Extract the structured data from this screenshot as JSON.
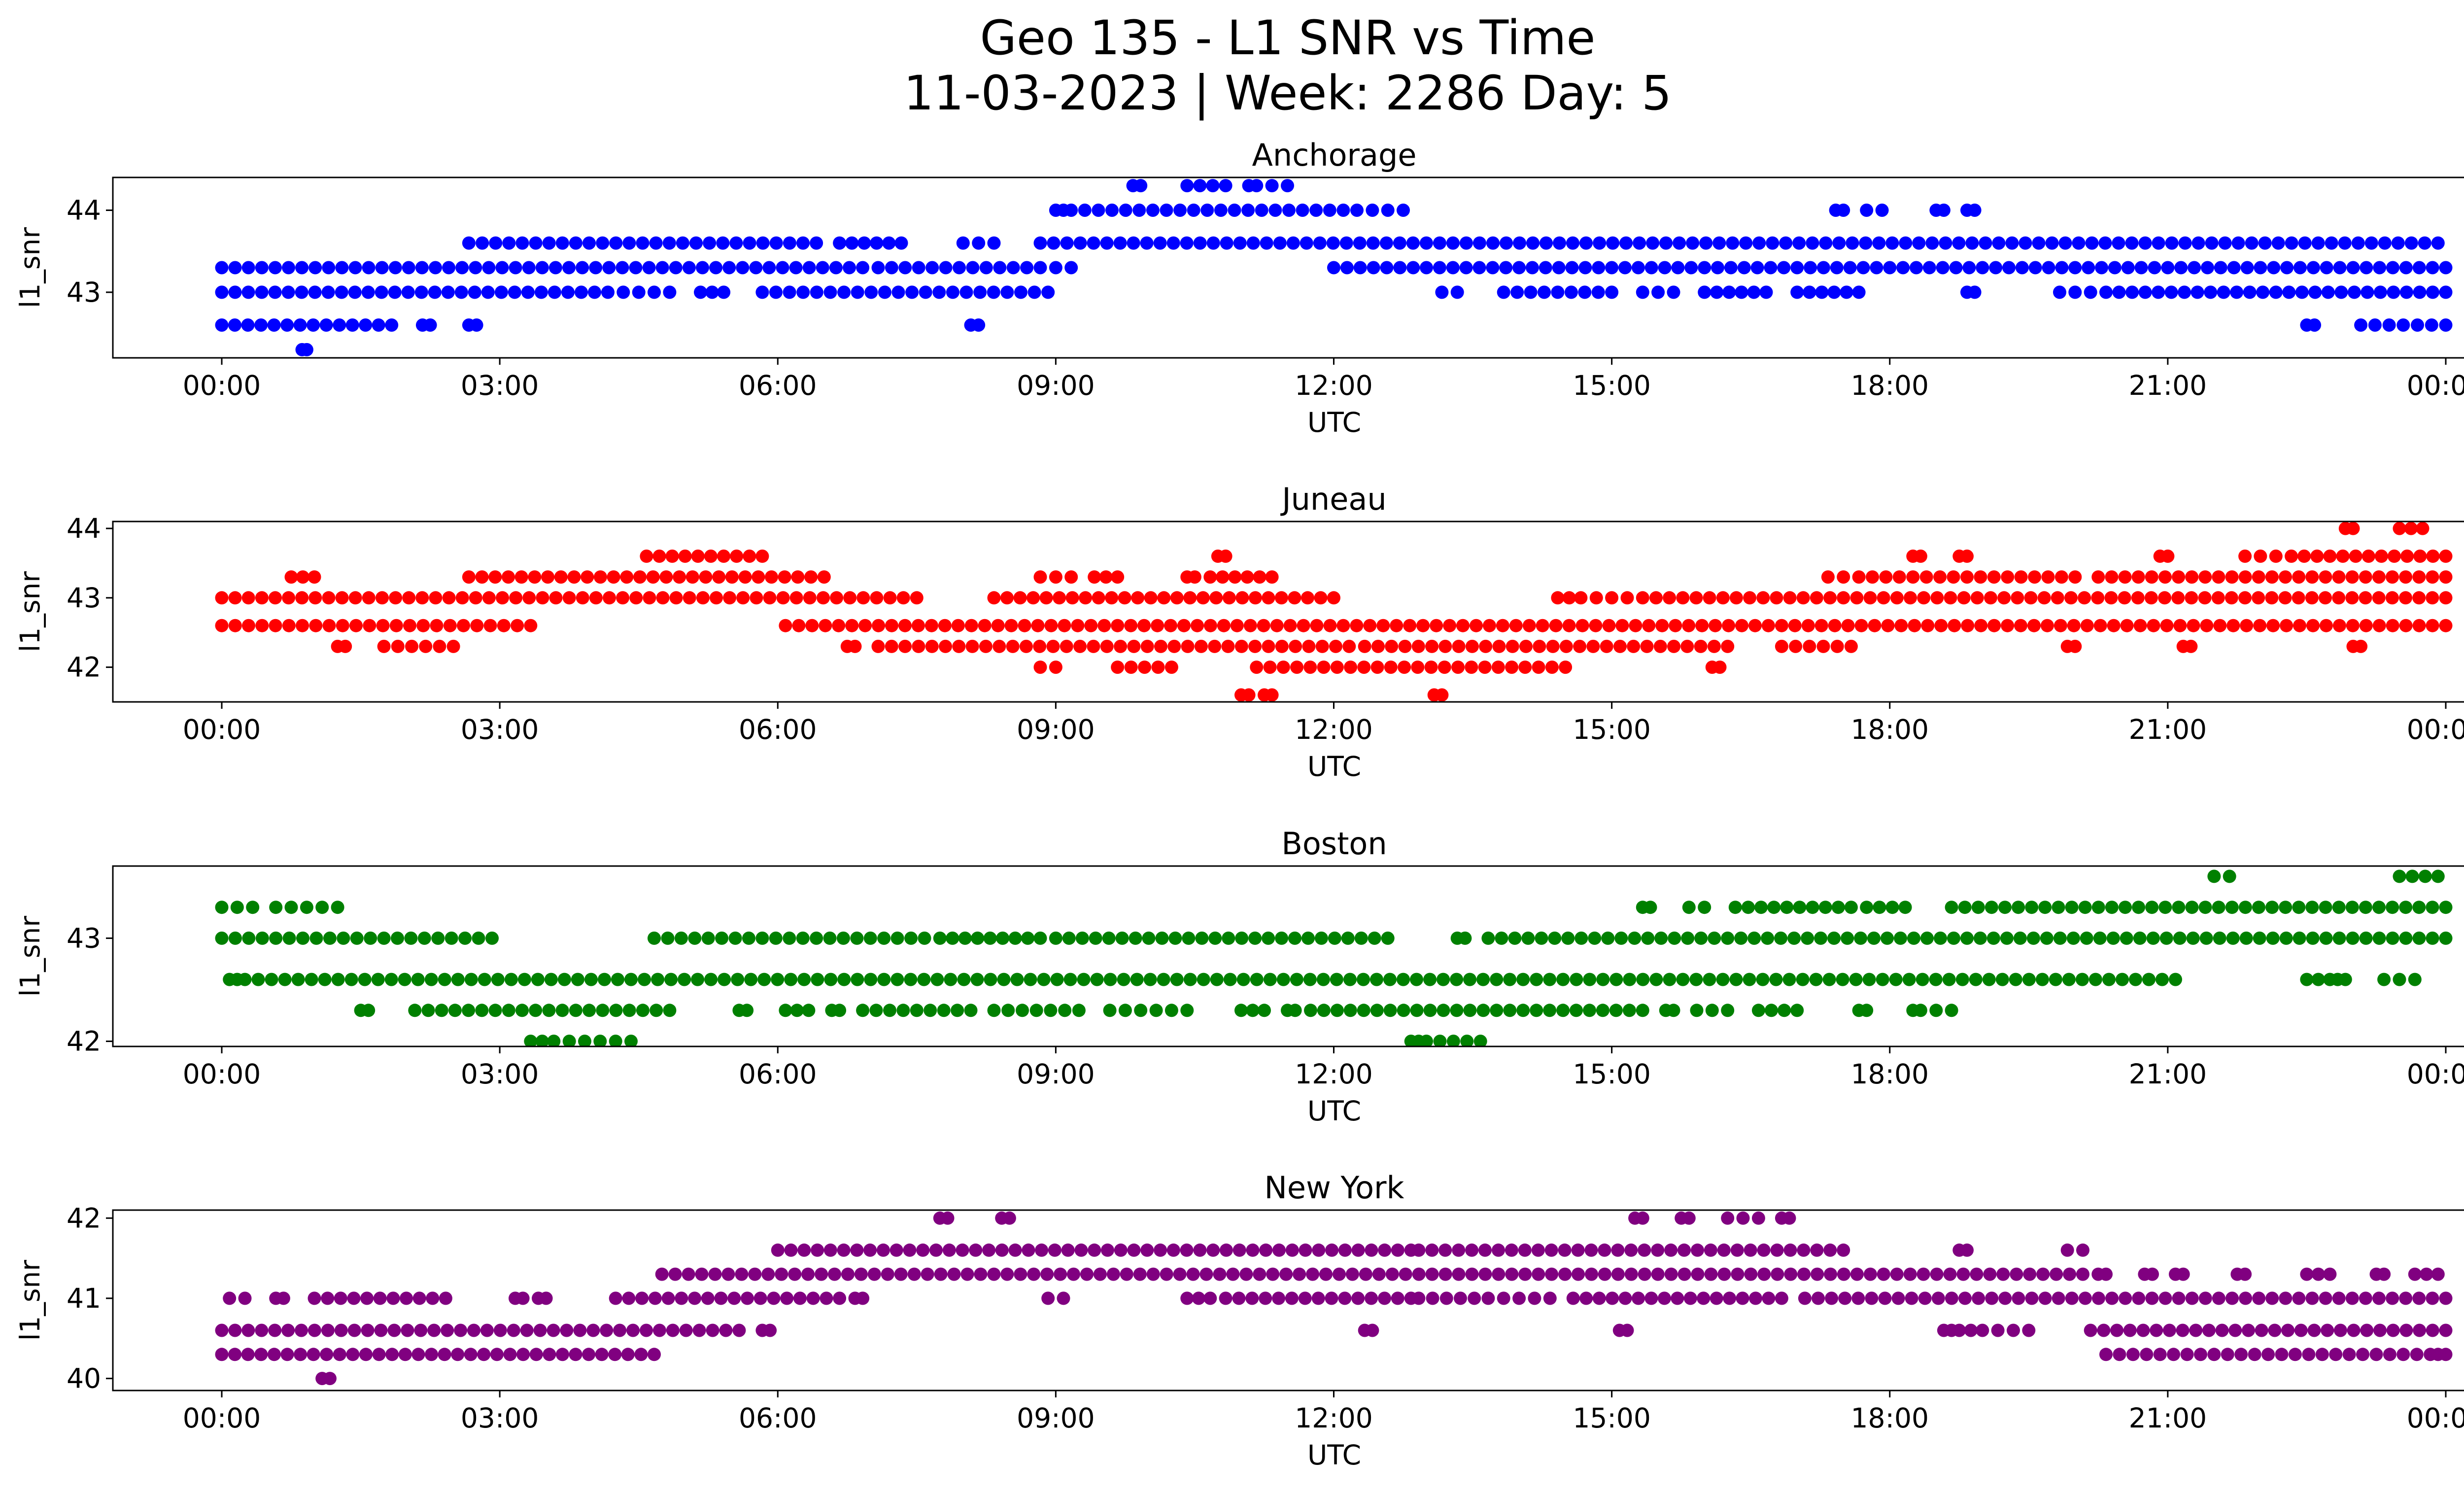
{
  "figure": {
    "title_line1": "Geo 135 - L1 SNR vs Time",
    "title_line2": "11-03-2023 | Week: 2286 Day: 5"
  },
  "chart_data": [
    {
      "type": "scatter",
      "title": "Anchorage",
      "xlabel": "UTC",
      "ylabel": "l1_snr",
      "color": "#0000ff",
      "xlim": [
        "2023-11-03 00:00",
        "2023-11-04 00:00"
      ],
      "ylim": [
        42.2,
        44.4
      ],
      "x_ticks": [
        "00:00",
        "03:00",
        "06:00",
        "09:00",
        "12:00",
        "15:00",
        "18:00",
        "21:00",
        "00:00"
      ],
      "y_ticks": [
        43,
        44
      ],
      "y_tick_labels": [
        "43",
        "44"
      ],
      "series": [
        {
          "y": 43.3,
          "segments": [
            [
              "00:00",
              "06:55"
            ],
            [
              "07:05",
              "08:50"
            ],
            [
              "09:00",
              "09:10"
            ],
            [
              "12:00",
              "24:00"
            ]
          ]
        },
        {
          "y": 43.0,
          "segments": [
            [
              "00:00",
              "04:10"
            ],
            [
              "04:20",
              "04:50"
            ],
            [
              "05:10",
              "05:25"
            ],
            [
              "05:50",
              "08:55"
            ],
            [
              "13:10",
              "13:20"
            ],
            [
              "13:50",
              "15:00"
            ],
            [
              "15:20",
              "15:40"
            ],
            [
              "16:00",
              "16:40"
            ],
            [
              "17:00",
              "17:40"
            ],
            [
              "18:50",
              "18:55"
            ],
            [
              "19:50",
              "20:10"
            ],
            [
              "20:20",
              "24:00"
            ]
          ]
        },
        {
          "y": 42.6,
          "segments": [
            [
              "00:00",
              "01:50"
            ],
            [
              "02:10",
              "02:15"
            ],
            [
              "02:40",
              "02:45"
            ],
            [
              "08:05",
              "08:10"
            ],
            [
              "22:30",
              "22:35"
            ],
            [
              "23:05",
              "24:00"
            ]
          ]
        },
        {
          "y": 42.3,
          "segments": [
            [
              "00:52",
              "00:55"
            ]
          ]
        },
        {
          "y": 43.6,
          "segments": [
            [
              "02:40",
              "06:25"
            ],
            [
              "06:40",
              "07:20"
            ],
            [
              "08:00",
              "08:20"
            ],
            [
              "08:50",
              "23:55"
            ]
          ]
        },
        {
          "y": 44.0,
          "segments": [
            [
              "09:00",
              "09:05"
            ],
            [
              "09:10",
              "12:15"
            ],
            [
              "12:25",
              "12:45"
            ],
            [
              "17:25",
              "17:30"
            ],
            [
              "17:45",
              "17:55"
            ],
            [
              "18:30",
              "18:35"
            ],
            [
              "18:50",
              "18:55"
            ]
          ]
        },
        {
          "y": 44.3,
          "segments": [
            [
              "09:50",
              "09:55"
            ],
            [
              "10:25",
              "10:50"
            ],
            [
              "11:05",
              "11:10"
            ],
            [
              "11:20",
              "11:30"
            ]
          ]
        }
      ]
    },
    {
      "type": "scatter",
      "title": "Juneau",
      "xlabel": "UTC",
      "ylabel": "l1_snr",
      "color": "#ff0000",
      "xlim": [
        "2023-11-03 00:00",
        "2023-11-04 00:00"
      ],
      "ylim": [
        41.5,
        44.1
      ],
      "x_ticks": [
        "00:00",
        "03:00",
        "06:00",
        "09:00",
        "12:00",
        "15:00",
        "18:00",
        "21:00",
        "00:00"
      ],
      "y_ticks": [
        42,
        43,
        44
      ],
      "y_tick_labels": [
        "42",
        "43",
        "44"
      ],
      "series": [
        {
          "y": 43.0,
          "segments": [
            [
              "00:00",
              "07:30"
            ],
            [
              "08:20",
              "12:00"
            ],
            [
              "14:25",
              "14:40"
            ],
            [
              "14:50",
              "15:10"
            ],
            [
              "15:20",
              "24:00"
            ]
          ]
        },
        {
          "y": 42.6,
          "segments": [
            [
              "00:00",
              "03:20"
            ],
            [
              "06:05",
              "24:00"
            ]
          ]
        },
        {
          "y": 43.3,
          "segments": [
            [
              "00:45",
              "01:00"
            ],
            [
              "02:40",
              "06:30"
            ],
            [
              "08:50",
              "09:10"
            ],
            [
              "09:25",
              "09:40"
            ],
            [
              "10:25",
              "10:30"
            ],
            [
              "10:40",
              "11:20"
            ],
            [
              "17:20",
              "17:30"
            ],
            [
              "17:40",
              "20:00"
            ],
            [
              "20:15",
              "24:00"
            ]
          ]
        },
        {
          "y": 42.3,
          "segments": [
            [
              "01:15",
              "01:20"
            ],
            [
              "01:45",
              "02:30"
            ],
            [
              "06:45",
              "06:50"
            ],
            [
              "07:05",
              "12:10"
            ],
            [
              "12:20",
              "16:15"
            ],
            [
              "16:50",
              "17:35"
            ],
            [
              "19:55",
              "20:00"
            ],
            [
              "21:10",
              "21:15"
            ],
            [
              "23:00",
              "23:05"
            ]
          ]
        },
        {
          "y": 43.6,
          "segments": [
            [
              "04:35",
              "05:50"
            ],
            [
              "10:45",
              "10:50"
            ],
            [
              "18:15",
              "18:20"
            ],
            [
              "18:45",
              "18:50"
            ],
            [
              "20:55",
              "21:00"
            ],
            [
              "21:50",
              "22:10"
            ],
            [
              "22:20",
              "24:00"
            ]
          ]
        },
        {
          "y": 42.0,
          "segments": [
            [
              "08:50",
              "09:00"
            ],
            [
              "09:40",
              "10:15"
            ],
            [
              "11:10",
              "14:30"
            ],
            [
              "16:05",
              "16:10"
            ]
          ]
        },
        {
          "y": 41.6,
          "segments": [
            [
              "11:00",
              "11:05"
            ],
            [
              "11:15",
              "11:20"
            ],
            [
              "13:05",
              "13:10"
            ]
          ]
        },
        {
          "y": 44.0,
          "segments": [
            [
              "22:55",
              "23:00"
            ],
            [
              "23:30",
              "23:45"
            ]
          ]
        }
      ]
    },
    {
      "type": "scatter",
      "title": "Boston",
      "xlabel": "UTC",
      "ylabel": "l1_snr",
      "color": "#008000",
      "xlim": [
        "2023-11-03 00:00",
        "2023-11-04 00:00"
      ],
      "ylim": [
        41.95,
        43.7
      ],
      "x_ticks": [
        "00:00",
        "03:00",
        "06:00",
        "09:00",
        "12:00",
        "15:00",
        "18:00",
        "21:00",
        "00:00"
      ],
      "y_ticks": [
        42,
        43
      ],
      "y_tick_labels": [
        "42",
        "43"
      ],
      "series": [
        {
          "y": 43.3,
          "segments": [
            [
              "00:00",
              "00:20"
            ],
            [
              "00:35",
              "00:45"
            ],
            [
              "00:55",
              "01:15"
            ],
            [
              "15:20",
              "15:25"
            ],
            [
              "15:50",
              "16:00"
            ],
            [
              "16:20",
              "17:35"
            ],
            [
              "17:45",
              "18:10"
            ],
            [
              "18:40",
              "24:00"
            ]
          ]
        },
        {
          "y": 43.0,
          "segments": [
            [
              "00:00",
              "02:55"
            ],
            [
              "04:40",
              "07:35"
            ],
            [
              "07:45",
              "08:50"
            ],
            [
              "09:00",
              "12:35"
            ],
            [
              "13:20",
              "13:25"
            ],
            [
              "13:40",
              "24:00"
            ]
          ]
        },
        {
          "y": 42.6,
          "segments": [
            [
              "00:05",
              "00:10"
            ],
            [
              "00:15",
              "21:05"
            ],
            [
              "22:30",
              "22:45"
            ],
            [
              "22:50",
              "22:55"
            ],
            [
              "23:20",
              "23:40"
            ]
          ]
        },
        {
          "y": 42.3,
          "segments": [
            [
              "01:30",
              "01:35"
            ],
            [
              "02:05",
              "04:50"
            ],
            [
              "05:35",
              "05:40"
            ],
            [
              "06:05",
              "06:20"
            ],
            [
              "06:35",
              "06:40"
            ],
            [
              "06:55",
              "08:05"
            ],
            [
              "08:20",
              "09:15"
            ],
            [
              "09:35",
              "09:55"
            ],
            [
              "10:05",
              "10:25"
            ],
            [
              "11:00",
              "11:15"
            ],
            [
              "11:30",
              "11:35"
            ],
            [
              "11:45",
              "15:20"
            ],
            [
              "15:35",
              "15:40"
            ],
            [
              "15:55",
              "16:15"
            ],
            [
              "16:35",
              "17:00"
            ],
            [
              "17:40",
              "17:45"
            ],
            [
              "18:15",
              "18:20"
            ],
            [
              "18:30",
              "18:40"
            ]
          ]
        },
        {
          "y": 42.0,
          "segments": [
            [
              "03:20",
              "03:35"
            ],
            [
              "03:45",
              "04:05"
            ],
            [
              "04:15",
              "04:25"
            ],
            [
              "12:50",
              "12:55"
            ],
            [
              "13:00",
              "13:35"
            ]
          ]
        },
        {
          "y": 43.6,
          "segments": [
            [
              "21:30",
              "21:40"
            ],
            [
              "23:30",
              "23:55"
            ]
          ]
        }
      ]
    },
    {
      "type": "scatter",
      "title": "New York",
      "xlabel": "UTC",
      "ylabel": "l1_snr",
      "color": "#800080",
      "xlim": [
        "2023-11-03 00:00",
        "2023-11-04 00:00"
      ],
      "ylim": [
        39.85,
        42.1
      ],
      "x_ticks": [
        "00:00",
        "03:00",
        "06:00",
        "09:00",
        "12:00",
        "15:00",
        "18:00",
        "21:00",
        "00:00"
      ],
      "y_ticks": [
        40,
        41,
        42
      ],
      "y_tick_labels": [
        "40",
        "41",
        "42"
      ],
      "series": [
        {
          "y": 40.3,
          "segments": [
            [
              "00:00",
              "04:40"
            ],
            [
              "20:20",
              "23:50"
            ],
            [
              "23:55",
              "24:00"
            ]
          ]
        },
        {
          "y": 40.6,
          "segments": [
            [
              "00:00",
              "05:35"
            ],
            [
              "05:50",
              "05:55"
            ],
            [
              "18:35",
              "18:40"
            ],
            [
              "18:45",
              "19:00"
            ],
            [
              "19:10",
              "19:30"
            ],
            [
              "20:10",
              "24:00"
            ]
          ]
        },
        {
          "y": 41.0,
          "segments": [
            [
              "00:05",
              "00:15"
            ],
            [
              "00:35",
              "00:40"
            ],
            [
              "01:00",
              "02:25"
            ],
            [
              "03:10",
              "03:15"
            ],
            [
              "03:25",
              "03:30"
            ],
            [
              "04:15",
              "06:40"
            ],
            [
              "06:50",
              "06:55"
            ],
            [
              "08:55",
              "09:05"
            ],
            [
              "10:25",
              "10:40"
            ],
            [
              "10:50",
              "12:50"
            ],
            [
              "12:55",
              "13:40"
            ],
            [
              "13:50",
              "14:20"
            ],
            [
              "14:35",
              "16:50"
            ],
            [
              "17:05",
              "24:00"
            ]
          ]
        },
        {
          "y": 40.0,
          "segments": [
            [
              "01:05",
              "01:10"
            ]
          ]
        },
        {
          "y": 41.3,
          "segments": [
            [
              "04:45",
              "20:05"
            ],
            [
              "20:15",
              "20:20"
            ],
            [
              "20:45",
              "20:50"
            ],
            [
              "21:05",
              "21:10"
            ],
            [
              "21:45",
              "21:50"
            ],
            [
              "22:30",
              "22:45"
            ],
            [
              "23:15",
              "23:20"
            ],
            [
              "23:40",
              "23:55"
            ]
          ]
        },
        {
          "y": 41.6,
          "segments": [
            [
              "06:00",
              "12:50"
            ],
            [
              "12:55",
              "17:30"
            ],
            [
              "18:45",
              "18:50"
            ],
            [
              "19:55",
              "20:05"
            ]
          ]
        },
        {
          "y": 42.0,
          "segments": [
            [
              "07:45",
              "07:50"
            ],
            [
              "08:25",
              "08:30"
            ],
            [
              "15:15",
              "15:20"
            ],
            [
              "15:45",
              "15:50"
            ],
            [
              "16:15",
              "16:35"
            ],
            [
              "16:50",
              "16:55"
            ]
          ]
        },
        {
          "y": 40.6,
          "segments": [
            [
              "12:20",
              "12:25"
            ],
            [
              "15:05",
              "15:10"
            ]
          ]
        }
      ]
    }
  ]
}
